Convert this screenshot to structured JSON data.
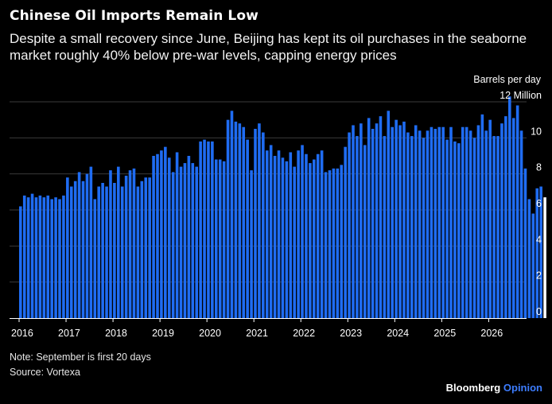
{
  "title": "Chinese Oil Imports Remain Low",
  "subtitle": "Despite a small recovery since June, Beijing has kept its oil purchases in the seaborne market roughly 40% below pre-war levels, capping energy prices",
  "unit_label": "Barrels per day",
  "note": "Note: September is first 20 days",
  "source": "Source: Vortexa",
  "brand": {
    "name": "Bloomberg",
    "suffix": "Opinion"
  },
  "colors": {
    "bar": "#1f6cf2",
    "highlight": "#ffffff",
    "background": "#000000",
    "grid": "#3a3a3a",
    "brand_accent": "#3d7dff"
  },
  "chart_data": {
    "type": "bar",
    "ylim": [
      0,
      12
    ],
    "y_ticks": [
      0,
      2,
      4,
      6,
      8,
      10,
      12
    ],
    "y_tick_labels": [
      "0",
      "2",
      "4",
      "6",
      "8",
      "10",
      "12 Million"
    ],
    "x_tick_labels": [
      "2016",
      "2017",
      "2018",
      "2019",
      "2020",
      "2021",
      "2022",
      "2023",
      "2024",
      "2025",
      "2026"
    ],
    "grid": true,
    "series": [
      {
        "name": "",
        "start": "2016-01",
        "frequency": "monthly",
        "values": [
          6.2,
          6.8,
          6.7,
          6.9,
          6.7,
          6.8,
          6.7,
          6.8,
          6.6,
          6.7,
          6.6,
          6.8,
          7.8,
          7.3,
          7.6,
          8.1,
          7.6,
          8.0,
          8.4,
          6.6,
          7.3,
          7.5,
          7.3,
          8.2,
          7.5,
          8.4,
          7.3,
          7.9,
          8.2,
          8.3,
          7.3,
          7.6,
          7.8,
          7.8,
          9.0,
          9.1,
          9.3,
          9.5,
          8.9,
          8.1,
          9.2,
          8.4,
          8.6,
          9.0,
          8.6,
          8.4,
          9.8,
          9.9,
          9.8,
          9.8,
          8.8,
          8.8,
          8.7,
          11.0,
          11.5,
          10.9,
          10.8,
          10.6,
          9.9,
          8.2,
          10.5,
          10.8,
          10.3,
          9.3,
          9.6,
          9.0,
          9.3,
          8.9,
          8.7,
          9.2,
          8.4,
          9.3,
          9.6,
          9.1,
          8.6,
          8.8,
          9.1,
          9.3,
          8.1,
          8.2,
          8.3,
          8.3,
          8.5,
          9.5,
          10.3,
          10.7,
          10.1,
          10.8,
          9.6,
          11.1,
          10.5,
          10.8,
          11.2,
          10.1,
          11.5,
          10.6,
          11.0,
          10.7,
          10.9,
          10.3,
          10.1,
          10.7,
          10.4,
          10.0,
          10.4,
          10.6,
          10.5,
          10.6,
          10.6,
          9.9,
          10.6,
          9.8,
          9.7,
          10.6,
          10.6,
          10.4,
          10.0,
          10.7,
          11.3,
          10.4,
          11.0,
          10.1,
          10.1,
          10.8,
          11.2,
          12.3,
          11.1,
          11.8,
          10.4,
          8.3,
          6.6,
          5.8,
          7.2,
          7.3,
          6.7
        ]
      }
    ],
    "highlight_last": true
  }
}
